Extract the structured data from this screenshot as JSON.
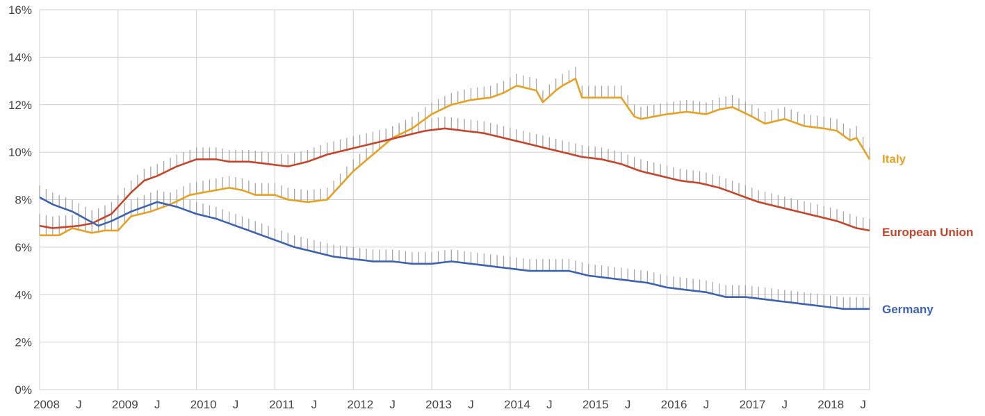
{
  "chart_data": {
    "type": "line",
    "title": "",
    "xlabel": "",
    "ylabel": "",
    "ylim": [
      0,
      16
    ],
    "y_ticks": [
      0,
      2,
      4,
      6,
      8,
      10,
      12,
      14,
      16
    ],
    "y_tick_labels": [
      "0%",
      "2%",
      "4%",
      "6%",
      "8%",
      "10%",
      "12%",
      "14%",
      "16%"
    ],
    "x_range": [
      "2008-01",
      "2018-08"
    ],
    "x_ticks": [
      {
        "label": "2008",
        "year": 2008,
        "month": 1
      },
      {
        "label": "J",
        "year": 2008,
        "month": 7
      },
      {
        "label": "2009",
        "year": 2009,
        "month": 1
      },
      {
        "label": "J",
        "year": 2009,
        "month": 7
      },
      {
        "label": "2010",
        "year": 2010,
        "month": 1
      },
      {
        "label": "J",
        "year": 2010,
        "month": 7
      },
      {
        "label": "2011",
        "year": 2011,
        "month": 1
      },
      {
        "label": "J",
        "year": 2011,
        "month": 7
      },
      {
        "label": "2012",
        "year": 2012,
        "month": 1
      },
      {
        "label": "J",
        "year": 2012,
        "month": 7
      },
      {
        "label": "2013",
        "year": 2013,
        "month": 1
      },
      {
        "label": "J",
        "year": 2013,
        "month": 7
      },
      {
        "label": "2014",
        "year": 2014,
        "month": 1
      },
      {
        "label": "J",
        "year": 2014,
        "month": 7
      },
      {
        "label": "2015",
        "year": 2015,
        "month": 1
      },
      {
        "label": "J",
        "year": 2015,
        "month": 7
      },
      {
        "label": "2016",
        "year": 2016,
        "month": 1
      },
      {
        "label": "J",
        "year": 2016,
        "month": 7
      },
      {
        "label": "2017",
        "year": 2017,
        "month": 1
      },
      {
        "label": "J",
        "year": 2017,
        "month": 7
      },
      {
        "label": "2018",
        "year": 2018,
        "month": 1
      },
      {
        "label": "J",
        "year": 2018,
        "month": 7
      }
    ],
    "grid": true,
    "legend": "end-of-line labels (right)",
    "whisker_offset": 0.5,
    "series": [
      {
        "name": "Italy",
        "color": "#e8a020",
        "knots": [
          [
            "2008-01",
            6.5
          ],
          [
            "2008-04",
            6.5
          ],
          [
            "2008-06",
            6.8
          ],
          [
            "2008-09",
            6.6
          ],
          [
            "2008-11",
            6.7
          ],
          [
            "2009-01",
            6.7
          ],
          [
            "2009-03",
            7.3
          ],
          [
            "2009-06",
            7.5
          ],
          [
            "2009-09",
            7.8
          ],
          [
            "2009-12",
            8.2
          ],
          [
            "2010-04",
            8.4
          ],
          [
            "2010-06",
            8.5
          ],
          [
            "2010-08",
            8.4
          ],
          [
            "2010-10",
            8.2
          ],
          [
            "2011-01",
            8.2
          ],
          [
            "2011-03",
            8.0
          ],
          [
            "2011-06",
            7.9
          ],
          [
            "2011-09",
            8.0
          ],
          [
            "2011-11",
            8.6
          ],
          [
            "2012-01",
            9.2
          ],
          [
            "2012-04",
            9.9
          ],
          [
            "2012-07",
            10.6
          ],
          [
            "2012-10",
            11.0
          ],
          [
            "2013-01",
            11.6
          ],
          [
            "2013-04",
            12.0
          ],
          [
            "2013-07",
            12.2
          ],
          [
            "2013-10",
            12.3
          ],
          [
            "2013-12",
            12.5
          ],
          [
            "2014-02",
            12.8
          ],
          [
            "2014-05",
            12.6
          ],
          [
            "2014-06",
            12.1
          ],
          [
            "2014-08",
            12.6
          ],
          [
            "2014-09",
            12.8
          ],
          [
            "2014-11",
            13.1
          ],
          [
            "2014-12",
            12.3
          ],
          [
            "2015-03",
            12.3
          ],
          [
            "2015-06",
            12.3
          ],
          [
            "2015-08",
            11.5
          ],
          [
            "2015-09",
            11.4
          ],
          [
            "2016-01",
            11.6
          ],
          [
            "2016-04",
            11.7
          ],
          [
            "2016-07",
            11.6
          ],
          [
            "2016-09",
            11.8
          ],
          [
            "2016-11",
            11.9
          ],
          [
            "2017-02",
            11.5
          ],
          [
            "2017-04",
            11.2
          ],
          [
            "2017-07",
            11.4
          ],
          [
            "2017-10",
            11.1
          ],
          [
            "2018-01",
            11.0
          ],
          [
            "2018-03",
            10.9
          ],
          [
            "2018-05",
            10.5
          ],
          [
            "2018-06",
            10.6
          ],
          [
            "2018-08",
            9.7
          ]
        ]
      },
      {
        "name": "European Union",
        "color": "#c6452a",
        "knots": [
          [
            "2008-01",
            6.9
          ],
          [
            "2008-03",
            6.8
          ],
          [
            "2008-07",
            6.9
          ],
          [
            "2008-09",
            7.0
          ],
          [
            "2008-12",
            7.4
          ],
          [
            "2009-03",
            8.3
          ],
          [
            "2009-05",
            8.8
          ],
          [
            "2009-07",
            9.0
          ],
          [
            "2009-10",
            9.4
          ],
          [
            "2010-01",
            9.7
          ],
          [
            "2010-04",
            9.7
          ],
          [
            "2010-06",
            9.6
          ],
          [
            "2010-09",
            9.6
          ],
          [
            "2010-12",
            9.5
          ],
          [
            "2011-03",
            9.4
          ],
          [
            "2011-06",
            9.6
          ],
          [
            "2011-09",
            9.9
          ],
          [
            "2011-12",
            10.1
          ],
          [
            "2012-03",
            10.3
          ],
          [
            "2012-06",
            10.5
          ],
          [
            "2012-09",
            10.7
          ],
          [
            "2012-12",
            10.9
          ],
          [
            "2013-03",
            11.0
          ],
          [
            "2013-06",
            10.9
          ],
          [
            "2013-09",
            10.8
          ],
          [
            "2013-12",
            10.6
          ],
          [
            "2014-03",
            10.4
          ],
          [
            "2014-06",
            10.2
          ],
          [
            "2014-09",
            10.0
          ],
          [
            "2014-12",
            9.8
          ],
          [
            "2015-03",
            9.7
          ],
          [
            "2015-06",
            9.5
          ],
          [
            "2015-09",
            9.2
          ],
          [
            "2015-12",
            9.0
          ],
          [
            "2016-03",
            8.8
          ],
          [
            "2016-06",
            8.7
          ],
          [
            "2016-09",
            8.5
          ],
          [
            "2016-12",
            8.2
          ],
          [
            "2017-03",
            7.9
          ],
          [
            "2017-06",
            7.7
          ],
          [
            "2017-09",
            7.5
          ],
          [
            "2017-12",
            7.3
          ],
          [
            "2018-03",
            7.1
          ],
          [
            "2018-06",
            6.8
          ],
          [
            "2018-08",
            6.7
          ]
        ]
      },
      {
        "name": "Germany",
        "color": "#3c62b3",
        "knots": [
          [
            "2008-01",
            8.1
          ],
          [
            "2008-03",
            7.8
          ],
          [
            "2008-06",
            7.5
          ],
          [
            "2008-08",
            7.2
          ],
          [
            "2008-10",
            6.9
          ],
          [
            "2008-12",
            7.1
          ],
          [
            "2009-03",
            7.5
          ],
          [
            "2009-07",
            7.9
          ],
          [
            "2009-10",
            7.7
          ],
          [
            "2010-01",
            7.4
          ],
          [
            "2010-04",
            7.2
          ],
          [
            "2010-07",
            6.9
          ],
          [
            "2010-10",
            6.6
          ],
          [
            "2011-01",
            6.3
          ],
          [
            "2011-04",
            6.0
          ],
          [
            "2011-07",
            5.8
          ],
          [
            "2011-10",
            5.6
          ],
          [
            "2012-01",
            5.5
          ],
          [
            "2012-04",
            5.4
          ],
          [
            "2012-07",
            5.4
          ],
          [
            "2012-10",
            5.3
          ],
          [
            "2013-01",
            5.3
          ],
          [
            "2013-04",
            5.4
          ],
          [
            "2013-07",
            5.3
          ],
          [
            "2013-10",
            5.2
          ],
          [
            "2014-01",
            5.1
          ],
          [
            "2014-04",
            5.0
          ],
          [
            "2014-07",
            5.0
          ],
          [
            "2014-10",
            5.0
          ],
          [
            "2015-01",
            4.8
          ],
          [
            "2015-04",
            4.7
          ],
          [
            "2015-07",
            4.6
          ],
          [
            "2015-10",
            4.5
          ],
          [
            "2016-01",
            4.3
          ],
          [
            "2016-04",
            4.2
          ],
          [
            "2016-07",
            4.1
          ],
          [
            "2016-10",
            3.9
          ],
          [
            "2017-01",
            3.9
          ],
          [
            "2017-04",
            3.8
          ],
          [
            "2017-07",
            3.7
          ],
          [
            "2017-10",
            3.6
          ],
          [
            "2018-01",
            3.5
          ],
          [
            "2018-04",
            3.4
          ],
          [
            "2018-08",
            3.4
          ]
        ]
      }
    ]
  }
}
